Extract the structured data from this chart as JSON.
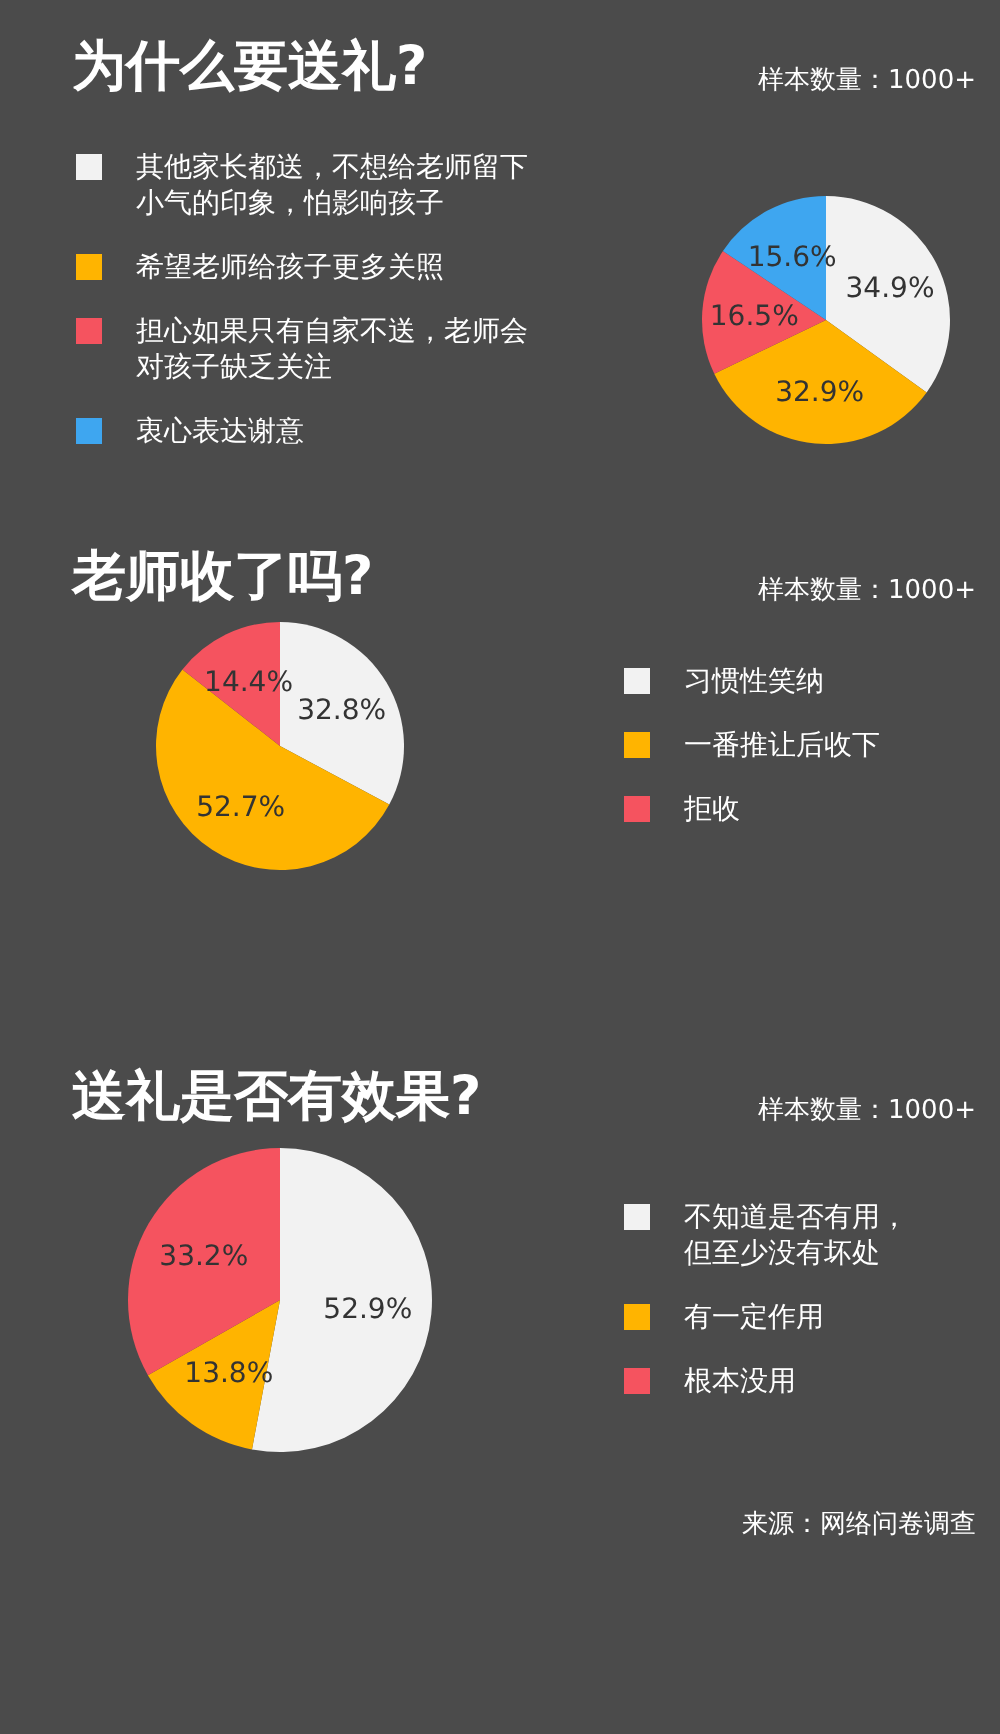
{
  "chart_data": [
    {
      "type": "pie",
      "title": "为什么要送礼?",
      "subtitle": "样本数量：1000+",
      "categories": [
        "其他家长都送，不想给老师留下小气的印象，怕影响孩子",
        "希望老师给孩子更多关照",
        "担心如果只有自家不送，老师会对孩子缺乏关注",
        "衷心表达谢意"
      ],
      "values": [
        34.9,
        32.9,
        16.5,
        15.6
      ],
      "value_labels": [
        "34.9%",
        "32.9%",
        "16.5%",
        "15.6%"
      ],
      "colors": [
        "#f2f2f2",
        "#ffb400",
        "#f5535f",
        "#3ea6f0"
      ],
      "legend": "left"
    },
    {
      "type": "pie",
      "title": "老师收了吗?",
      "subtitle": "样本数量：1000+",
      "categories": [
        "习惯性笑纳",
        "一番推让后收下",
        "拒收"
      ],
      "values": [
        32.8,
        52.7,
        14.4
      ],
      "value_labels": [
        "32.8%",
        "52.7%",
        "14.4%"
      ],
      "colors": [
        "#f2f2f2",
        "#ffb400",
        "#f5535f"
      ],
      "legend": "right"
    },
    {
      "type": "pie",
      "title": "送礼是否有效果?",
      "subtitle": "样本数量：1000+",
      "categories": [
        "不知道是否有用，但至少没有坏处",
        "有一定作用",
        "根本没用"
      ],
      "values": [
        52.9,
        13.8,
        33.2
      ],
      "value_labels": [
        "52.9%",
        "13.8%",
        "33.2%"
      ],
      "colors": [
        "#f2f2f2",
        "#ffb400",
        "#f5535f"
      ],
      "legend": "right",
      "annotations": [
        "来源：网络问卷调查"
      ]
    }
  ]
}
